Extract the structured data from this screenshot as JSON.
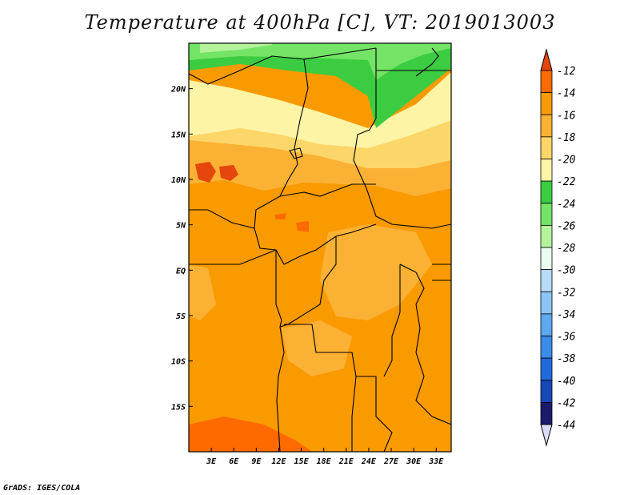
{
  "title": "Temperature at 400hPa [C], VT: 2019013003",
  "credit": "GrADS: IGES/COLA",
  "map": {
    "lon_range": [
      0,
      35
    ],
    "lat_range": [
      -20,
      25
    ],
    "x_ticks": [
      "3E",
      "6E",
      "9E",
      "12E",
      "15E",
      "18E",
      "21E",
      "24E",
      "27E",
      "30E",
      "33E"
    ],
    "x_tick_values": [
      3,
      6,
      9,
      12,
      15,
      18,
      21,
      24,
      27,
      30,
      33
    ],
    "y_ticks": [
      "20N",
      "15N",
      "10N",
      "5N",
      "EQ",
      "5S",
      "10S",
      "15S"
    ],
    "y_tick_values": [
      20,
      15,
      10,
      5,
      0,
      -5,
      -10,
      -15
    ]
  },
  "colorbar": {
    "labels": [
      "-12",
      "-14",
      "-16",
      "-18",
      "-20",
      "-22",
      "-24",
      "-26",
      "-28",
      "-30",
      "-32",
      "-34",
      "-36",
      "-38",
      "-40",
      "-42",
      "-44"
    ],
    "colors_top_to_bottom": [
      "#e5460d",
      "#ff6a00",
      "#f99a00",
      "#fbb134",
      "#fcd669",
      "#fef4a6",
      "#3ccc42",
      "#74e466",
      "#b4f39c",
      "#eafef0",
      "#b7dcf9",
      "#8dc5f5",
      "#5da8ef",
      "#3b8ce8",
      "#2169dc",
      "#1648b8",
      "#1b1a6b",
      "#dcdcf6"
    ]
  }
}
